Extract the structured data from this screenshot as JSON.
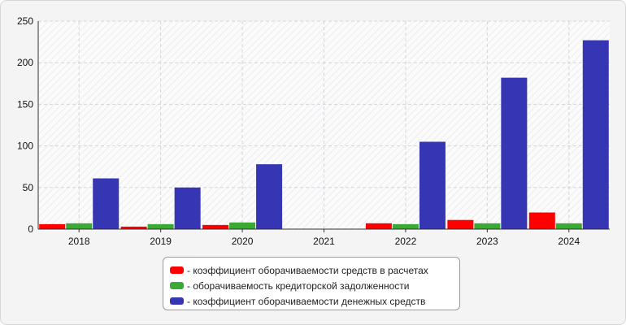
{
  "chart_data": {
    "type": "bar",
    "categories": [
      "2018",
      "2019",
      "2020",
      "2021",
      "2022",
      "2023",
      "2024"
    ],
    "series": [
      {
        "name": "- коэффициент оборачиваемости средств в расчетах",
        "color": "#ff0000",
        "values": [
          6,
          3,
          5,
          0,
          7,
          11,
          20
        ]
      },
      {
        "name": "- оборачиваемость кредиторской задолженности",
        "color": "#3aaa35",
        "values": [
          7,
          6,
          8,
          0,
          6,
          7,
          7
        ]
      },
      {
        "name": "- коэффициент оборачиваемости денежных средств",
        "color": "#3636b4",
        "values": [
          61,
          50,
          78,
          0,
          105,
          182,
          227
        ]
      }
    ],
    "ylim": [
      0,
      250
    ],
    "yticks": [
      "0",
      "50",
      "100",
      "150",
      "200",
      "250"
    ],
    "grid": true,
    "legend_position": "bottom-center"
  }
}
